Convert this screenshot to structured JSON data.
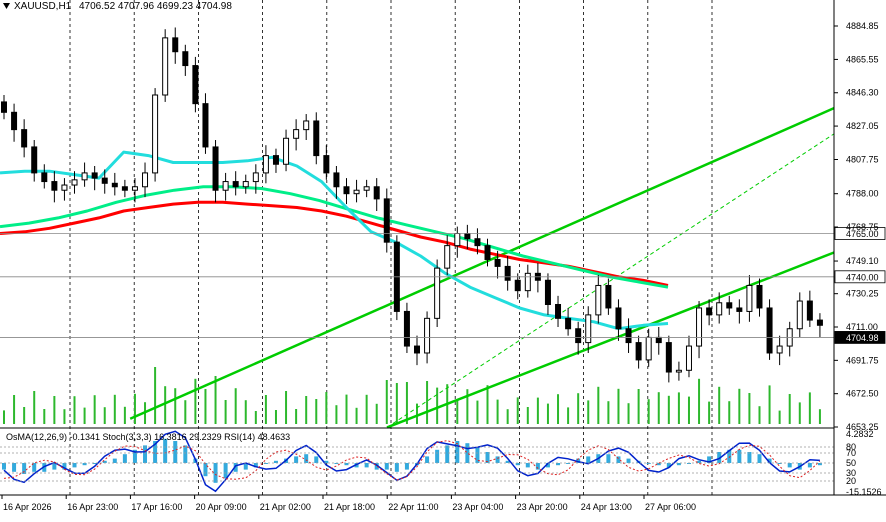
{
  "header": {
    "symbol_text": "XAUUSD,H1",
    "ohlc_text": "4706.52 4707.96 4699.23 4704.98"
  },
  "indicator_header": "OsMA(12,26,9) -0.1341 Stoch(3,3,3) 16.3816 29.2329 RSI(14) 48.4633",
  "chart_data": [
    {
      "type": "candlestick",
      "symbol": "XAUUSD",
      "timeframe": "H1",
      "ohlc": {
        "open": 4706.52,
        "high": 4707.96,
        "low": 4699.23,
        "close": 4704.98
      },
      "price_axis_ticks": [
        "4884.85",
        "4865.55",
        "4846.30",
        "4827.05",
        "4807.75",
        "4788.00",
        "4768.75",
        "4749.10",
        "4730.25",
        "4711.00",
        "4691.75",
        "4672.50",
        "4653.25"
      ],
      "y_range": [
        4653.25,
        4884.85
      ],
      "price_labels": [
        {
          "text": "4765.00",
          "value": 4765.0,
          "style": "horizontal level"
        },
        {
          "text": "4740.00",
          "value": 4740.0,
          "style": "horizontal level"
        },
        {
          "text": "4704.98",
          "value": 4704.98,
          "style": "current price"
        }
      ],
      "time_axis_labels": [
        "16 Apr 2026",
        "16 Apr 23:00",
        "17 Apr 16:00",
        "20 Apr 09:00",
        "21 Apr 02:00",
        "21 Apr 18:00",
        "22 Apr 11:00",
        "23 Apr 04:00",
        "23 Apr 20:00",
        "24 Apr 13:00",
        "27 Apr 06:00"
      ],
      "close_series": [
        4835,
        4825,
        4815,
        4800,
        4795,
        4790,
        4793,
        4796,
        4800,
        4797,
        4794,
        4792,
        4790,
        4792,
        4800,
        4845,
        4878,
        4870,
        4862,
        4840,
        4815,
        4790,
        4795,
        4792,
        4795,
        4800,
        4810,
        4805,
        4820,
        4825,
        4830,
        4810,
        4800,
        4792,
        4788,
        4790,
        4792,
        4785,
        4760,
        4720,
        4700,
        4696,
        4716,
        4745,
        4758,
        4765,
        4762,
        4758,
        4750,
        4746,
        4738,
        4732,
        4742,
        4738,
        4724,
        4716,
        4710,
        4702,
        4718,
        4735,
        4722,
        4710,
        4702,
        4692,
        4705,
        4702,
        4685,
        4686,
        4700,
        4722,
        4718,
        4725,
        4722,
        4720,
        4735,
        4722,
        4696,
        4700,
        4710,
        4726,
        4715,
        4712
      ],
      "moving_averages": [
        {
          "color": "#ff0000",
          "values": [
            4765,
            4766,
            4768,
            4771,
            4774,
            4778,
            4780,
            4782,
            4783,
            4783,
            4782,
            4781,
            4780,
            4778,
            4775,
            4771,
            4767,
            4763,
            4760,
            4756,
            4753,
            4750,
            4748,
            4746,
            4743,
            4740,
            4738,
            4735
          ]
        },
        {
          "color": "#00ee88",
          "values": [
            4769,
            4771,
            4774,
            4778,
            4783,
            4787,
            4790,
            4792,
            4792,
            4791,
            4788,
            4784,
            4779,
            4774,
            4770,
            4766,
            4762,
            4757,
            4752,
            4748,
            4744,
            4740,
            4737,
            4734
          ]
        },
        {
          "color": "#22dddd",
          "values": [
            4800,
            4801,
            4801,
            4799,
            4797,
            4812,
            4810,
            4806,
            4806,
            4806,
            4807,
            4809,
            4804,
            4795,
            4780,
            4766,
            4760,
            4752,
            4742,
            4734,
            4728,
            4722,
            4718,
            4716,
            4714,
            4710,
            4712,
            4713
          ]
        }
      ],
      "trend_lines": [
        {
          "color": "#00cc00",
          "style": "solid",
          "from": [
            "16 Apr 23:00",
            4658
          ],
          "to": [
            "27 Apr 06:00",
            4790
          ]
        },
        {
          "color": "#00cc00",
          "style": "solid",
          "from": [
            "21 Apr 18:00",
            4653
          ],
          "to": [
            "27 Apr 06:00",
            4712
          ]
        },
        {
          "color": "#00cc00",
          "style": "dashed",
          "from": [
            "21 Apr 18:00",
            4653
          ],
          "to": [
            "27 Apr 06:00",
            4752
          ]
        }
      ],
      "grid": "vertical dashed"
    },
    {
      "type": "oscillators",
      "indicators": [
        {
          "name": "OsMA",
          "params": "12,26,9",
          "value": -0.1341,
          "style": "histogram"
        },
        {
          "name": "Stoch",
          "params": "3,3,3",
          "values": [
            16.3816,
            29.2329
          ]
        },
        {
          "name": "RSI",
          "params": "14",
          "value": 48.4633
        }
      ],
      "axis_labels": [
        "4.2832",
        "80",
        "70",
        "50",
        "30",
        "20",
        "-15.1526"
      ],
      "osma_values": [
        -3,
        -4,
        -5,
        -4,
        -4,
        -3,
        -3,
        -2,
        -1,
        0,
        1,
        2,
        4,
        6,
        8,
        10,
        11,
        10,
        8,
        2,
        -6,
        -9,
        -7,
        -4,
        -3,
        -2,
        0,
        1,
        2,
        3,
        4,
        3,
        1,
        0,
        -1,
        -2,
        -2,
        -3,
        -3,
        -4,
        -3,
        -1,
        3,
        6,
        8,
        10,
        9,
        7,
        5,
        3,
        1,
        -1,
        -2,
        -3,
        -2,
        -1,
        0,
        2,
        3,
        4,
        4,
        3,
        2,
        1,
        0,
        -1,
        -2,
        -1,
        0,
        1,
        3,
        5,
        6,
        6,
        5,
        4,
        2,
        0,
        -2,
        -3,
        -2,
        -1
      ]
    }
  ]
}
